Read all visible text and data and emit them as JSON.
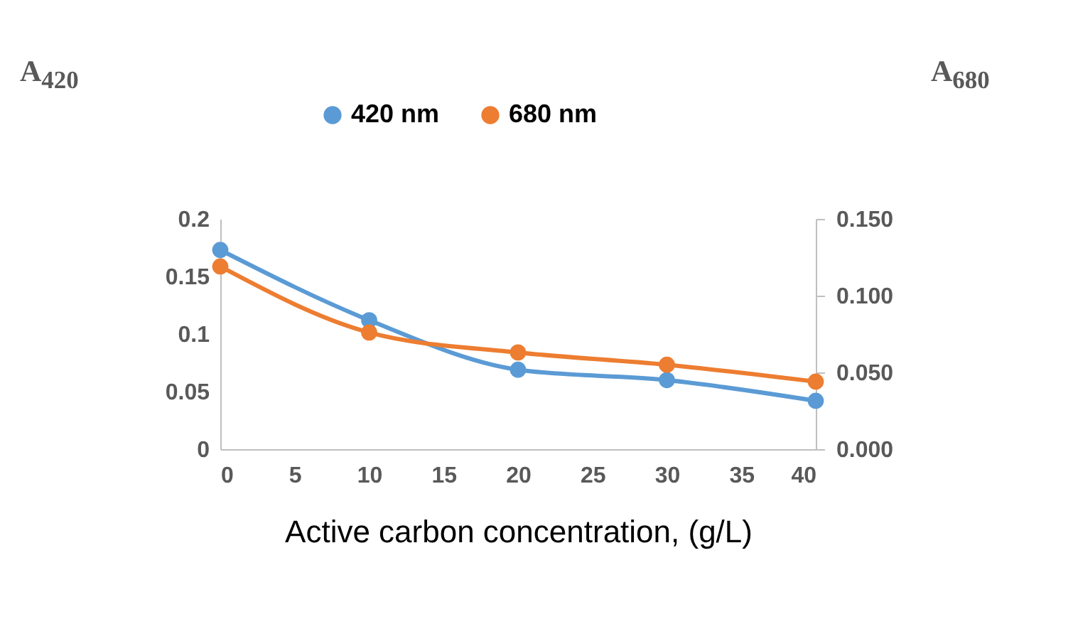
{
  "chart_data": {
    "type": "line",
    "xlabel": "Active carbon concentration, (g/L)",
    "ylabel": "A$_{420}$",
    "y2label": "A$_{680}$",
    "x": [
      0,
      10,
      20,
      30,
      40
    ],
    "series": [
      {
        "name": "420 nm",
        "color": "#5b9bd5",
        "values": [
          0.173,
          0.112,
          0.069,
          0.06,
          0.042
        ]
      },
      {
        "name": "680 nm",
        "color": "#ed7d31",
        "values": [
          0.119,
          0.076,
          0.063,
          0.055,
          0.044
        ],
        "axis": "y2"
      }
    ],
    "xlim": [
      0,
      40
    ],
    "xticks": [
      0,
      5,
      10,
      15,
      20,
      25,
      30,
      35,
      40
    ],
    "ylim": [
      0,
      0.2
    ],
    "yticks": [
      0,
      0.05,
      0.1,
      0.15,
      0.2
    ],
    "y2lim": [
      0,
      0.15
    ],
    "y2ticks": [
      {
        "value": 0,
        "label": "0.000"
      },
      {
        "value": 0.05,
        "label": "0.050"
      },
      {
        "value": 0.1,
        "label": "0.100"
      },
      {
        "value": 0.15,
        "label": "0.150"
      }
    ],
    "grid": false,
    "legend": "top",
    "marker": "circle",
    "line_style": "solid"
  }
}
